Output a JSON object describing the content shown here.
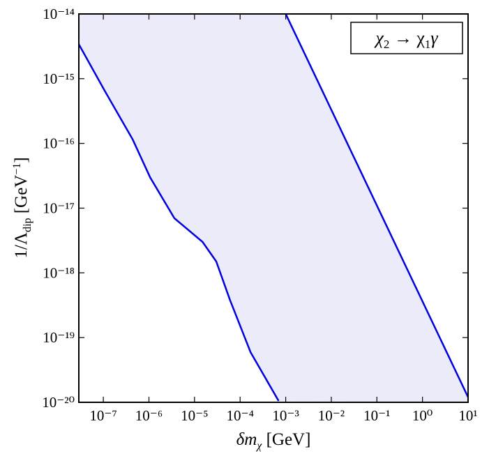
{
  "chart_data": {
    "type": "line",
    "log_x": true,
    "log_y": true,
    "x_label": [
      "δm",
      "χ",
      " [GeV]"
    ],
    "y_label": [
      "1/Λ",
      "dip",
      " [GeV",
      "−1",
      "]"
    ],
    "annotation": [
      "χ",
      "2",
      " → χ",
      "1",
      "γ"
    ],
    "fill_color": "#ebebfa",
    "series": [
      {
        "color": "#0000e0",
        "x": [
          2.9e-08,
          1.07e-07,
          4.4e-07,
          1.06e-06,
          3.6e-06,
          1.5e-05,
          3e-05,
          6e-05,
          0.00017,
          0.0007
        ],
        "values": [
          3.4e-15,
          6.5e-16,
          1.15e-16,
          3e-17,
          7e-18,
          3e-18,
          1.5e-18,
          3.8e-19,
          5.9e-20,
          1.05e-20
        ]
      },
      {
        "color": "#0000e0",
        "x": [
          0.001,
          10
        ],
        "values": [
          1e-14,
          1.2e-20
        ]
      }
    ],
    "xlim": [
      2.9e-08,
      10
    ],
    "ylim": [
      1e-20,
      1e-14
    ],
    "xticks": [
      {
        "value": 1e-07,
        "label": "10⁻⁷"
      },
      {
        "value": 1e-06,
        "label": "10⁻⁶"
      },
      {
        "value": 1e-05,
        "label": "10⁻⁵"
      },
      {
        "value": 0.0001,
        "label": "10⁻⁴"
      },
      {
        "value": 0.001,
        "label": "10⁻³"
      },
      {
        "value": 0.01,
        "label": "10⁻²"
      },
      {
        "value": 0.1,
        "label": "10⁻¹"
      },
      {
        "value": 1,
        "label": "10⁰"
      },
      {
        "value": 10,
        "label": "10¹"
      }
    ],
    "yticks": [
      {
        "value": 1e-20,
        "label": "10⁻²⁰"
      },
      {
        "value": 1e-19,
        "label": "10⁻¹⁹"
      },
      {
        "value": 1e-18,
        "label": "10⁻¹⁸"
      },
      {
        "value": 1e-17,
        "label": "10⁻¹⁷"
      },
      {
        "value": 1e-16,
        "label": "10⁻¹⁶"
      },
      {
        "value": 1e-15,
        "label": "10⁻¹⁵"
      },
      {
        "value": 1e-14,
        "label": "10⁻¹⁴"
      }
    ]
  }
}
